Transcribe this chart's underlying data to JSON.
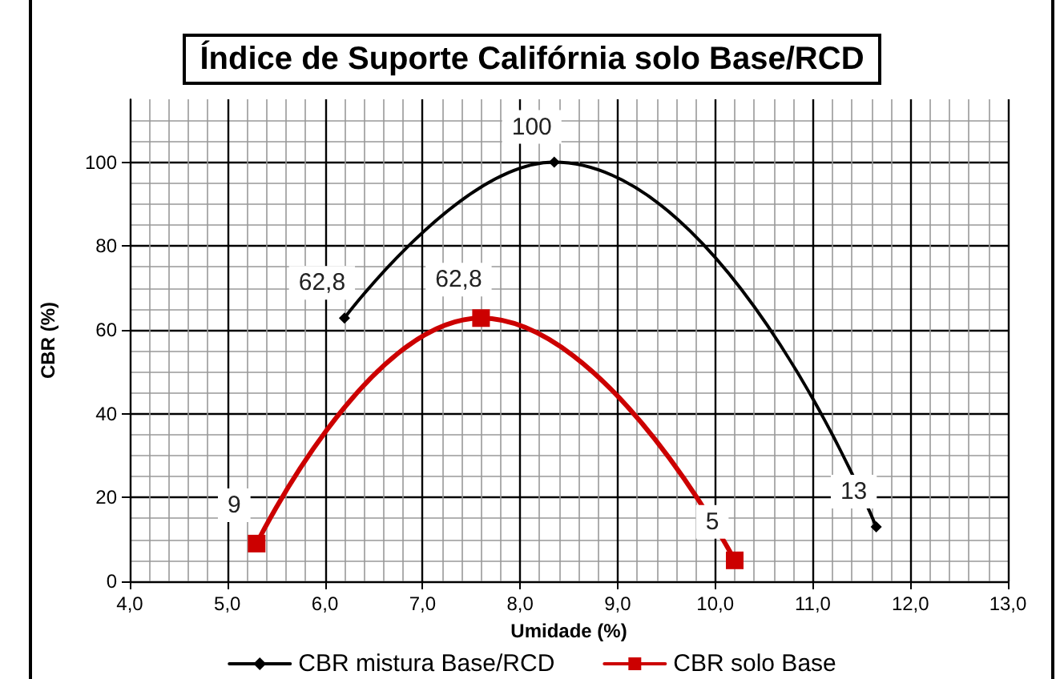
{
  "chart_data": {
    "type": "line",
    "title": "Índice de Suporte Califórnia solo Base/RCD",
    "xlabel": "Umidade (%)",
    "ylabel": "CBR (%)",
    "series": [
      {
        "name": "CBR mistura Base/RCD",
        "color": "#000000",
        "marker": "diamond",
        "x": [
          6.2,
          8.35,
          11.65
        ],
        "values": [
          62.8,
          100,
          13
        ],
        "value_labels": [
          "62,8",
          "100",
          "13"
        ]
      },
      {
        "name": "CBR solo Base",
        "color": "#cc0000",
        "marker": "square",
        "x": [
          5.3,
          7.6,
          10.2
        ],
        "values": [
          9,
          62.8,
          5
        ],
        "value_labels": [
          "9",
          "62,8",
          "5"
        ]
      }
    ],
    "xlim": [
      4,
      13
    ],
    "xticks": [
      {
        "value": 4,
        "label": "4,0"
      },
      {
        "value": 5,
        "label": "5,0"
      },
      {
        "value": 6,
        "label": "6,0"
      },
      {
        "value": 7,
        "label": "7,0"
      },
      {
        "value": 8,
        "label": "8,0"
      },
      {
        "value": 9,
        "label": "9,0"
      },
      {
        "value": 10,
        "label": "10,0"
      },
      {
        "value": 11,
        "label": "11,0"
      },
      {
        "value": 12,
        "label": "12,0"
      },
      {
        "value": 13,
        "label": "13,0"
      }
    ],
    "ylim": [
      0,
      115
    ],
    "yticks": [
      0,
      20,
      40,
      60,
      80,
      100
    ],
    "grid": true,
    "legend": "bottom",
    "line_style": "solid"
  }
}
